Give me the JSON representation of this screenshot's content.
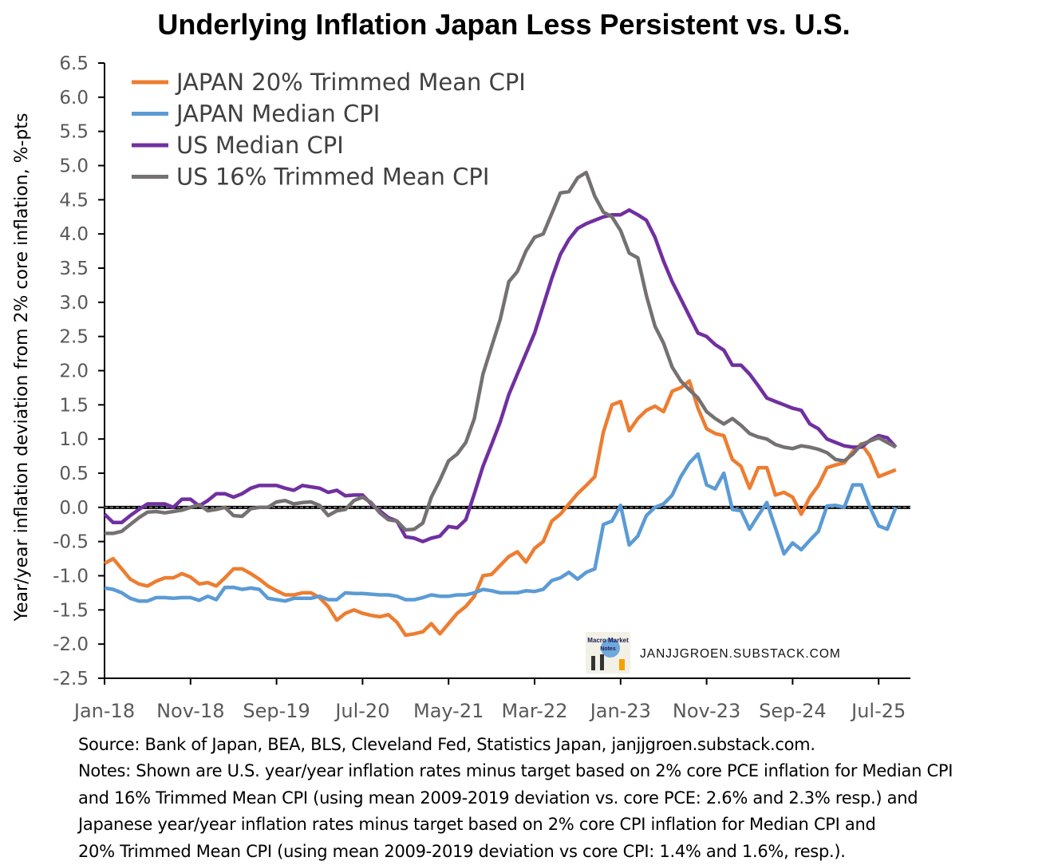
{
  "chart_data": {
    "type": "line",
    "title": "Underlying Inflation Japan Less Persistent vs. U.S.",
    "ylabel": "Year/year inflation deviation from 2% core inflation, %-pts",
    "xlabel": "",
    "ylim": [
      -2.5,
      6.5
    ],
    "yticks": [
      "6.5",
      "6.0",
      "5.5",
      "5.0",
      "4.5",
      "4.0",
      "3.5",
      "3.0",
      "2.5",
      "2.0",
      "1.5",
      "1.0",
      "0.5",
      "0.0",
      "-0.5",
      "-1.0",
      "-1.5",
      "-2.0",
      "-2.5"
    ],
    "x_start": "Jan-18",
    "x_frequency": "monthly",
    "x_end": "Sep-25",
    "xticks": [
      "Jan-18",
      "Nov-18",
      "Sep-19",
      "Jul-20",
      "May-21",
      "Mar-22",
      "Jan-23",
      "Nov-23",
      "Sep-24",
      "Jul-25"
    ],
    "legend_position": "top-left",
    "grid": false,
    "reference_line": 0,
    "series": [
      {
        "name": "JAPAN 20% Trimmed Mean CPI",
        "color": "#ED7D31",
        "values": [
          -0.82,
          -0.75,
          -0.9,
          -1.05,
          -1.12,
          -1.15,
          -1.08,
          -1.03,
          -1.03,
          -0.97,
          -1.02,
          -1.12,
          -1.1,
          -1.15,
          -1.03,
          -0.9,
          -0.9,
          -0.97,
          -1.05,
          -1.15,
          -1.22,
          -1.28,
          -1.28,
          -1.25,
          -1.25,
          -1.32,
          -1.45,
          -1.65,
          -1.55,
          -1.5,
          -1.55,
          -1.58,
          -1.6,
          -1.57,
          -1.68,
          -1.87,
          -1.85,
          -1.82,
          -1.7,
          -1.85,
          -1.7,
          -1.55,
          -1.45,
          -1.3,
          -1.0,
          -0.98,
          -0.85,
          -0.72,
          -0.65,
          -0.8,
          -0.6,
          -0.5,
          -0.2,
          -0.1,
          0.05,
          0.2,
          0.32,
          0.45,
          1.1,
          1.5,
          1.55,
          1.12,
          1.3,
          1.42,
          1.48,
          1.4,
          1.7,
          1.75,
          1.85,
          1.45,
          1.15,
          1.08,
          1.05,
          0.7,
          0.6,
          0.28,
          0.58,
          0.58,
          0.18,
          0.22,
          0.15,
          -0.1,
          0.15,
          0.32,
          0.58,
          0.62,
          0.65,
          0.82,
          0.93,
          0.75,
          0.45,
          0.5,
          0.55
        ]
      },
      {
        "name": "JAPAN Median CPI",
        "color": "#5B9BD5",
        "values": [
          -1.18,
          -1.2,
          -1.25,
          -1.33,
          -1.37,
          -1.37,
          -1.32,
          -1.32,
          -1.33,
          -1.32,
          -1.32,
          -1.36,
          -1.3,
          -1.35,
          -1.17,
          -1.17,
          -1.2,
          -1.18,
          -1.2,
          -1.33,
          -1.35,
          -1.37,
          -1.33,
          -1.33,
          -1.33,
          -1.3,
          -1.35,
          -1.35,
          -1.25,
          -1.26,
          -1.26,
          -1.27,
          -1.28,
          -1.28,
          -1.3,
          -1.35,
          -1.35,
          -1.32,
          -1.28,
          -1.3,
          -1.3,
          -1.28,
          -1.28,
          -1.25,
          -1.2,
          -1.22,
          -1.25,
          -1.25,
          -1.25,
          -1.22,
          -1.23,
          -1.2,
          -1.07,
          -1.03,
          -0.95,
          -1.05,
          -0.95,
          -0.9,
          -0.25,
          -0.2,
          0.03,
          -0.55,
          -0.42,
          -0.12,
          0.0,
          0.05,
          0.18,
          0.45,
          0.65,
          0.78,
          0.33,
          0.27,
          0.5,
          -0.03,
          -0.05,
          -0.32,
          -0.12,
          0.07,
          -0.3,
          -0.68,
          -0.52,
          -0.62,
          -0.48,
          -0.35,
          0.02,
          0.03,
          0.0,
          0.33,
          0.33,
          0.0,
          -0.27,
          -0.32,
          0.0
        ]
      },
      {
        "name": "US Median CPI",
        "color": "#7030A0",
        "values": [
          -0.1,
          -0.22,
          -0.22,
          -0.12,
          -0.03,
          0.05,
          0.05,
          0.05,
          0.0,
          0.12,
          0.12,
          0.02,
          0.1,
          0.2,
          0.2,
          0.15,
          0.2,
          0.28,
          0.32,
          0.32,
          0.32,
          0.28,
          0.25,
          0.32,
          0.3,
          0.28,
          0.22,
          0.25,
          0.17,
          0.18,
          0.18,
          0.05,
          -0.05,
          -0.15,
          -0.2,
          -0.43,
          -0.45,
          -0.5,
          -0.45,
          -0.42,
          -0.28,
          -0.3,
          -0.18,
          0.2,
          0.6,
          0.92,
          1.25,
          1.65,
          1.95,
          2.25,
          2.55,
          2.95,
          3.35,
          3.7,
          3.92,
          4.08,
          4.15,
          4.2,
          4.25,
          4.28,
          4.28,
          4.35,
          4.28,
          4.2,
          3.95,
          3.6,
          3.3,
          3.05,
          2.8,
          2.55,
          2.5,
          2.38,
          2.3,
          2.08,
          2.08,
          1.95,
          1.78,
          1.6,
          1.55,
          1.5,
          1.45,
          1.42,
          1.22,
          1.15,
          1.0,
          0.95,
          0.9,
          0.88,
          0.88,
          0.98,
          1.05,
          1.02,
          0.88
        ]
      },
      {
        "name": "US 16% Trimmed Mean CPI",
        "color": "#767171",
        "values": [
          -0.38,
          -0.38,
          -0.35,
          -0.25,
          -0.15,
          -0.07,
          -0.06,
          -0.08,
          -0.06,
          -0.04,
          0.0,
          0.04,
          -0.05,
          -0.03,
          0.0,
          -0.12,
          -0.13,
          -0.02,
          0.0,
          0.0,
          0.08,
          0.1,
          0.05,
          0.07,
          0.08,
          0.03,
          -0.12,
          -0.05,
          -0.03,
          0.1,
          0.15,
          0.07,
          -0.08,
          -0.18,
          -0.2,
          -0.33,
          -0.32,
          -0.23,
          0.15,
          0.4,
          0.68,
          0.78,
          0.95,
          1.3,
          1.95,
          2.35,
          2.75,
          3.3,
          3.45,
          3.75,
          3.95,
          4.0,
          4.3,
          4.6,
          4.62,
          4.82,
          4.9,
          4.55,
          4.32,
          4.25,
          4.05,
          3.72,
          3.65,
          3.1,
          2.65,
          2.4,
          2.05,
          1.85,
          1.72,
          1.6,
          1.4,
          1.3,
          1.22,
          1.3,
          1.2,
          1.08,
          1.03,
          1.0,
          0.92,
          0.88,
          0.86,
          0.9,
          0.88,
          0.85,
          0.8,
          0.7,
          0.68,
          0.78,
          0.92,
          0.97,
          1.02,
          0.95,
          0.88
        ]
      }
    ]
  },
  "watermark": {
    "logo_text": "Macro Market Notes",
    "site": "JANJJGROEN.SUBSTACK.COM"
  },
  "notes": {
    "source": "Source: Bank of Japan, BEA, BLS, Cleveland Fed, Statistics Japan, janjjgroen.substack.com.",
    "line1": "Notes: Shown are U.S. year/year inflation rates minus target based on 2% core PCE inflation for Median CPI",
    "line2": "and 16% Trimmed Mean CPI (using mean 2009-2019 deviation vs. core PCE: 2.6% and 2.3% resp.) and",
    "line3": "Japanese year/year inflation rates minus target based on 2% core CPI inflation for Median CPI and",
    "line4": "20% Trimmed Mean CPI (using mean 2009-2019 deviation vs core CPI: 1.4% and 1.6%, resp.)."
  }
}
